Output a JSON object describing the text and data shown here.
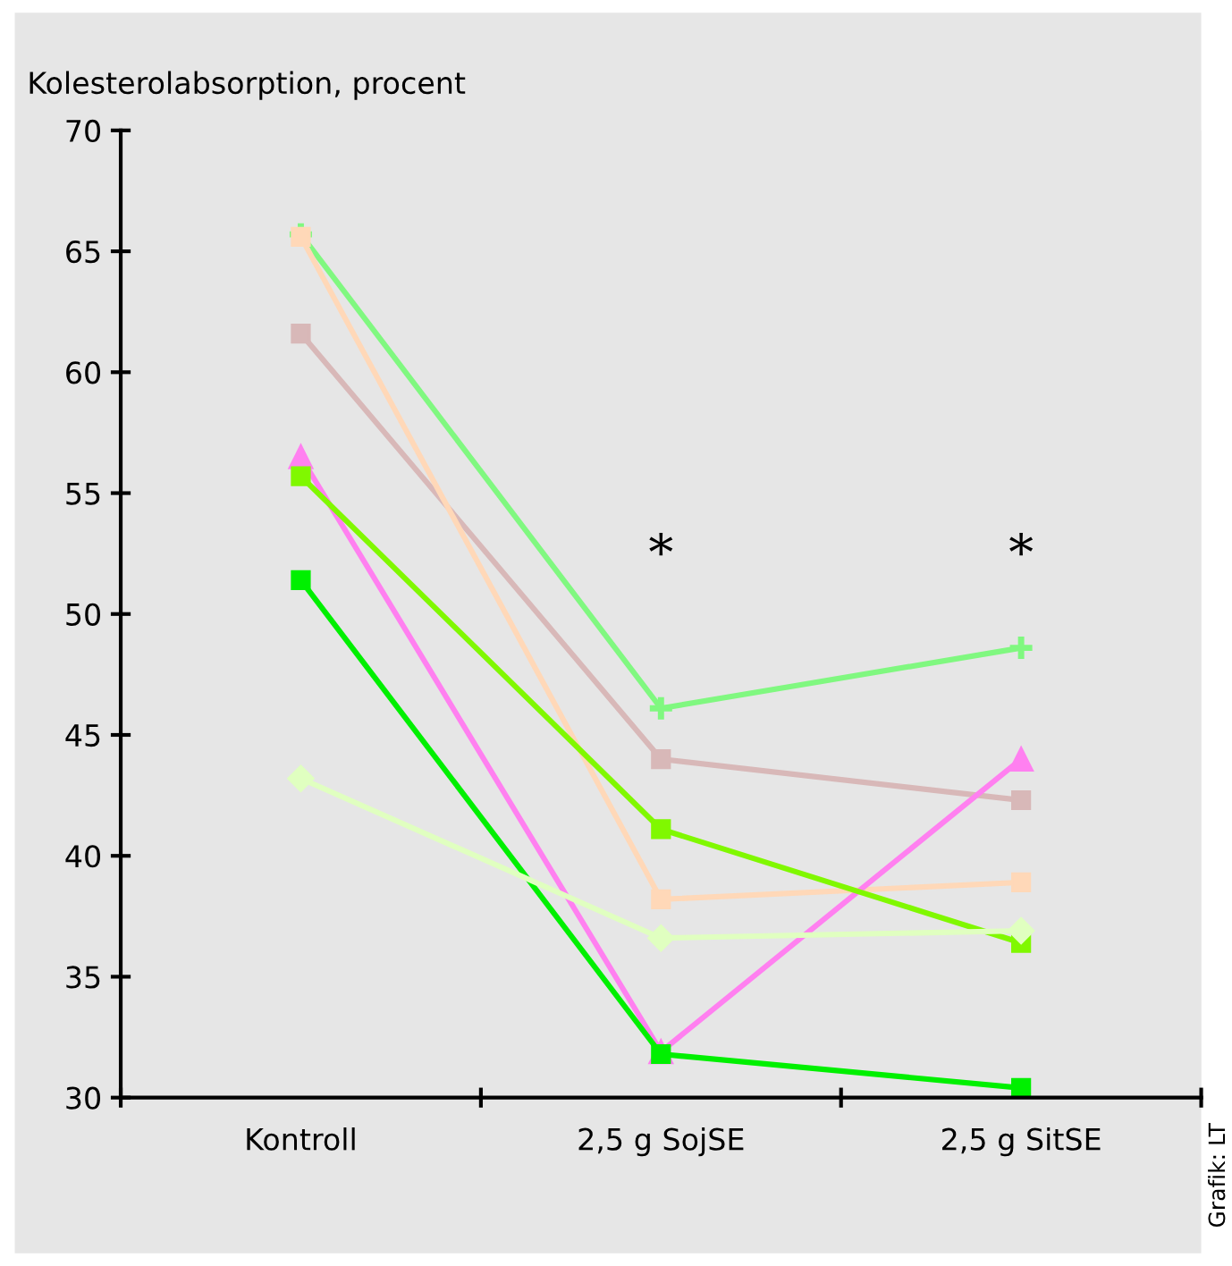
{
  "chart_data": {
    "type": "line",
    "ylabel": "Kolesterolabsorption, procent",
    "categories": [
      "Kontroll",
      "2,5 g SojSE",
      "2,5 g SitSE"
    ],
    "series": [
      {
        "color": "#80f880",
        "marker": "cross",
        "values": [
          65.7,
          46.1,
          48.6
        ]
      },
      {
        "color": "#d8b8b8",
        "marker": "square",
        "values": [
          61.6,
          44.0,
          42.3
        ]
      },
      {
        "color": "#ffd8b8",
        "marker": "square",
        "values": [
          65.6,
          38.2,
          38.9
        ]
      },
      {
        "color": "#ff80f0",
        "marker": "triangle",
        "values": [
          56.5,
          31.9,
          44.0
        ]
      },
      {
        "color": "#80f800",
        "marker": "square",
        "values": [
          55.7,
          41.1,
          36.4
        ]
      },
      {
        "color": "#00f000",
        "marker": "square",
        "values": [
          51.4,
          31.8,
          30.4
        ]
      },
      {
        "color": "#e0ffc0",
        "marker": "diamond",
        "values": [
          43.2,
          36.6,
          36.9
        ]
      }
    ],
    "ylim": [
      30,
      70
    ],
    "yticks": [
      30,
      35,
      40,
      45,
      50,
      55,
      60,
      65,
      70
    ],
    "grid": false,
    "legend": false,
    "line_style": "solid",
    "annotations": [
      "*",
      "*",
      "Grafik: LT"
    ]
  }
}
